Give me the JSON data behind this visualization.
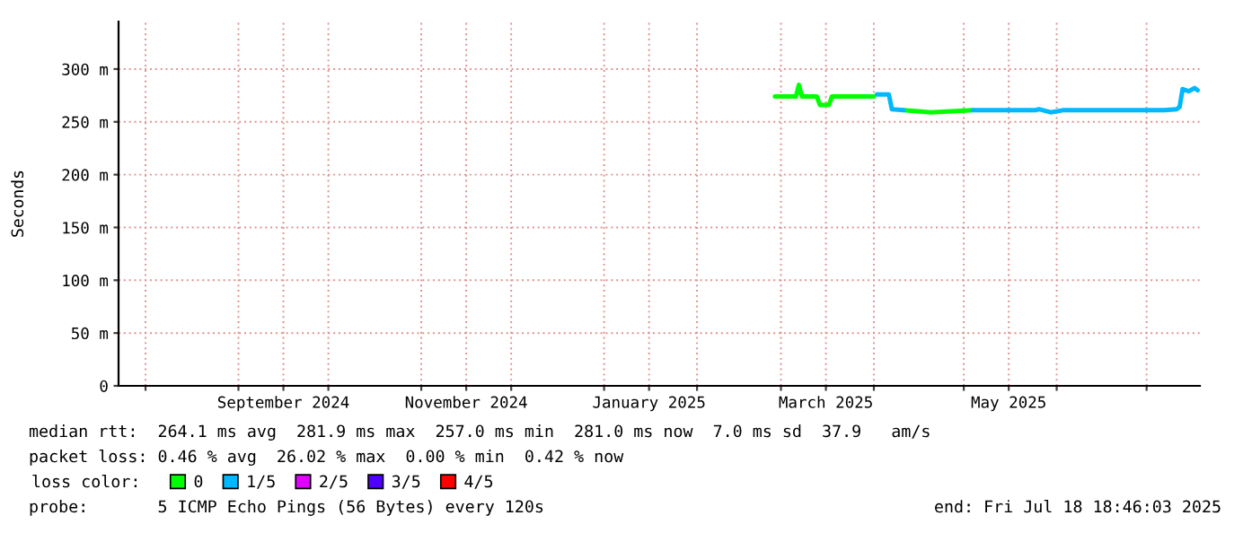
{
  "chart_data": {
    "type": "line",
    "ylabel": "Seconds",
    "xlim": [
      "2024-07-23",
      "2025-07-18T18:46"
    ],
    "xticks": [
      {
        "value": "2024-08-01",
        "label": null
      },
      {
        "value": "2024-09-01",
        "label": null
      },
      {
        "value": "2024-09-16",
        "label": "September 2024"
      },
      {
        "value": "2024-10-01",
        "label": null
      },
      {
        "value": "2024-11-01",
        "label": null
      },
      {
        "value": "2024-11-16",
        "label": "November 2024"
      },
      {
        "value": "2024-12-01",
        "label": null
      },
      {
        "value": "2025-01-01",
        "label": null
      },
      {
        "value": "2025-01-16",
        "label": "January 2025"
      },
      {
        "value": "2025-02-01",
        "label": null
      },
      {
        "value": "2025-03-01",
        "label": null
      },
      {
        "value": "2025-03-16",
        "label": "March 2025"
      },
      {
        "value": "2025-04-01",
        "label": null
      },
      {
        "value": "2025-05-01",
        "label": null
      },
      {
        "value": "2025-05-16",
        "label": "May 2025"
      },
      {
        "value": "2025-06-01",
        "label": null
      },
      {
        "value": "2025-07-01",
        "label": null
      }
    ],
    "ylim": [
      0,
      345
    ],
    "yticks": [
      {
        "value": 0,
        "label": "0"
      },
      {
        "value": 50,
        "label": "50 m"
      },
      {
        "value": 100,
        "label": "100 m"
      },
      {
        "value": 150,
        "label": "150 m"
      },
      {
        "value": 200,
        "label": "200 m"
      },
      {
        "value": 250,
        "label": "250 m"
      },
      {
        "value": 300,
        "label": "300 m"
      }
    ],
    "grid": true,
    "legend": "bottom",
    "legend_title": "loss color:",
    "line_style": "solid",
    "marker": "none",
    "series": [
      {
        "name": "0",
        "color": "#00ff00",
        "x": [
          "2025-02-27",
          "2025-03-06",
          "2025-03-07",
          "2025-03-08",
          "2025-03-13",
          "2025-03-14",
          "2025-03-17",
          "2025-03-18",
          "2025-04-01",
          "2025-04-05",
          "2025-04-11",
          "2025-04-20",
          "2025-05-04"
        ],
        "values": [
          274,
          274,
          285,
          274,
          274,
          266,
          266,
          274,
          274,
          null,
          261,
          259,
          261
        ]
      },
      {
        "name": "1/5",
        "color": "#00b8ff",
        "x": [
          "2025-04-02",
          "2025-04-06",
          "2025-04-07",
          "2025-04-11",
          "2025-04-20",
          "2025-05-04",
          "2025-05-25",
          "2025-05-26",
          "2025-05-30",
          "2025-06-03",
          "2025-07-07",
          "2025-07-11",
          "2025-07-12",
          "2025-07-13",
          "2025-07-15",
          "2025-07-17",
          "2025-07-18"
        ],
        "values": [
          276,
          276,
          262,
          261,
          null,
          261,
          261,
          262,
          259,
          261,
          261,
          262,
          264,
          281,
          279,
          282,
          280
        ]
      },
      {
        "name": "2/5",
        "color": "#e000ff"
      },
      {
        "name": "3/5",
        "color": "#5000ff"
      },
      {
        "name": "4/5",
        "color": "#ff0000"
      }
    ],
    "annotations": [
      "median rtt:  264.1 ms avg  281.9 ms max  257.0 ms min  281.0 ms now  7.0 ms sd  37.9   am/s",
      "packet loss: 0.46 % avg  26.02 % max  0.00 % min  0.42 % now",
      "probe:       5 ICMP Echo Pings (56 Bytes) every 120s",
      "end: Fri Jul 18 18:46:03 2025"
    ]
  }
}
